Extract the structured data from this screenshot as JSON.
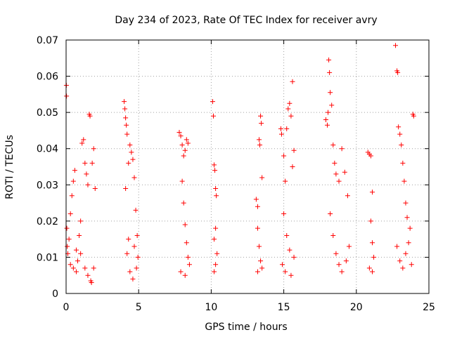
{
  "chart_data": {
    "type": "scatter",
    "title": "Day 234 of 2023, Rate Of TEC Index for receiver avry",
    "xlabel": "GPS time / hours",
    "ylabel": "ROTI / TECUs",
    "xlim": [
      0,
      25
    ],
    "ylim": [
      0,
      0.07
    ],
    "xticks": [
      "0",
      "5",
      "10",
      "15",
      "20",
      "25"
    ],
    "yticks": [
      "0",
      "0.01",
      "0.02",
      "0.03",
      "0.04",
      "0.05",
      "0.06",
      "0.07"
    ],
    "grid": true,
    "marker": "plus",
    "color": "#ff0000",
    "series": [
      {
        "points": [
          [
            0.02,
            0.0575
          ],
          [
            0.03,
            0.0545
          ],
          [
            0.05,
            0.018
          ],
          [
            0.08,
            0.013
          ],
          [
            0.12,
            0.011
          ],
          [
            0.2,
            0.015
          ],
          [
            0.3,
            0.022
          ],
          [
            0.4,
            0.027
          ],
          [
            0.5,
            0.031
          ],
          [
            0.6,
            0.034
          ],
          [
            0.7,
            0.012
          ],
          [
            0.8,
            0.009
          ],
          [
            0.9,
            0.016
          ],
          [
            1.0,
            0.02
          ],
          [
            1.1,
            0.0415
          ],
          [
            1.2,
            0.0425
          ],
          [
            1.3,
            0.036
          ],
          [
            1.4,
            0.033
          ],
          [
            1.5,
            0.03
          ],
          [
            1.6,
            0.0495
          ],
          [
            1.65,
            0.049
          ],
          [
            1.7,
            0.0035
          ],
          [
            1.75,
            0.003
          ],
          [
            1.8,
            0.036
          ],
          [
            1.9,
            0.04
          ],
          [
            2.0,
            0.029
          ],
          [
            0.3,
            0.008
          ],
          [
            0.5,
            0.007
          ],
          [
            0.7,
            0.006
          ],
          [
            1.0,
            0.011
          ],
          [
            1.3,
            0.007
          ],
          [
            1.5,
            0.005
          ],
          [
            1.9,
            0.007
          ],
          [
            4.0,
            0.053
          ],
          [
            4.05,
            0.051
          ],
          [
            4.1,
            0.0485
          ],
          [
            4.15,
            0.0465
          ],
          [
            4.2,
            0.044
          ],
          [
            4.3,
            0.036
          ],
          [
            4.1,
            0.029
          ],
          [
            4.4,
            0.041
          ],
          [
            4.5,
            0.039
          ],
          [
            4.6,
            0.037
          ],
          [
            4.7,
            0.032
          ],
          [
            4.8,
            0.023
          ],
          [
            4.9,
            0.016
          ],
          [
            4.95,
            0.01
          ],
          [
            4.4,
            0.006
          ],
          [
            4.6,
            0.004
          ],
          [
            4.2,
            0.011
          ],
          [
            4.3,
            0.015
          ],
          [
            4.7,
            0.013
          ],
          [
            4.85,
            0.007
          ],
          [
            7.8,
            0.0445
          ],
          [
            7.9,
            0.0435
          ],
          [
            8.0,
            0.041
          ],
          [
            8.1,
            0.038
          ],
          [
            8.2,
            0.0395
          ],
          [
            8.3,
            0.0425
          ],
          [
            8.4,
            0.0415
          ],
          [
            8.0,
            0.031
          ],
          [
            8.1,
            0.025
          ],
          [
            8.2,
            0.019
          ],
          [
            8.3,
            0.014
          ],
          [
            8.4,
            0.01
          ],
          [
            8.5,
            0.008
          ],
          [
            7.9,
            0.006
          ],
          [
            8.2,
            0.005
          ],
          [
            10.1,
            0.053
          ],
          [
            10.15,
            0.049
          ],
          [
            10.2,
            0.0355
          ],
          [
            10.25,
            0.034
          ],
          [
            10.3,
            0.029
          ],
          [
            10.35,
            0.027
          ],
          [
            10.3,
            0.018
          ],
          [
            10.2,
            0.015
          ],
          [
            10.4,
            0.011
          ],
          [
            10.3,
            0.008
          ],
          [
            10.2,
            0.006
          ],
          [
            13.1,
            0.026
          ],
          [
            13.2,
            0.024
          ],
          [
            13.3,
            0.0425
          ],
          [
            13.35,
            0.041
          ],
          [
            13.4,
            0.049
          ],
          [
            13.45,
            0.047
          ],
          [
            13.5,
            0.032
          ],
          [
            13.2,
            0.018
          ],
          [
            13.3,
            0.013
          ],
          [
            13.4,
            0.009
          ],
          [
            13.2,
            0.006
          ],
          [
            13.5,
            0.007
          ],
          [
            14.8,
            0.0455
          ],
          [
            14.85,
            0.044
          ],
          [
            15.0,
            0.038
          ],
          [
            15.1,
            0.031
          ],
          [
            15.2,
            0.0455
          ],
          [
            15.3,
            0.051
          ],
          [
            15.4,
            0.0525
          ],
          [
            15.5,
            0.049
          ],
          [
            15.6,
            0.0585
          ],
          [
            15.7,
            0.0395
          ],
          [
            15.6,
            0.035
          ],
          [
            15.0,
            0.022
          ],
          [
            15.2,
            0.016
          ],
          [
            15.4,
            0.012
          ],
          [
            14.9,
            0.008
          ],
          [
            15.1,
            0.006
          ],
          [
            15.5,
            0.005
          ],
          [
            15.7,
            0.01
          ],
          [
            17.9,
            0.048
          ],
          [
            18.0,
            0.0465
          ],
          [
            18.05,
            0.05
          ],
          [
            18.1,
            0.0645
          ],
          [
            18.15,
            0.061
          ],
          [
            18.2,
            0.0555
          ],
          [
            18.3,
            0.052
          ],
          [
            18.4,
            0.041
          ],
          [
            18.5,
            0.036
          ],
          [
            18.6,
            0.033
          ],
          [
            18.8,
            0.031
          ],
          [
            19.0,
            0.04
          ],
          [
            19.2,
            0.0335
          ],
          [
            19.4,
            0.027
          ],
          [
            18.2,
            0.022
          ],
          [
            18.4,
            0.016
          ],
          [
            18.6,
            0.011
          ],
          [
            18.8,
            0.008
          ],
          [
            19.0,
            0.006
          ],
          [
            19.3,
            0.009
          ],
          [
            19.5,
            0.013
          ],
          [
            20.8,
            0.039
          ],
          [
            20.9,
            0.0385
          ],
          [
            21.0,
            0.038
          ],
          [
            21.1,
            0.028
          ],
          [
            21.0,
            0.02
          ],
          [
            21.1,
            0.014
          ],
          [
            21.2,
            0.01
          ],
          [
            20.9,
            0.007
          ],
          [
            21.1,
            0.006
          ],
          [
            22.7,
            0.0685
          ],
          [
            22.8,
            0.0615
          ],
          [
            22.85,
            0.061
          ],
          [
            22.9,
            0.046
          ],
          [
            23.0,
            0.044
          ],
          [
            23.1,
            0.041
          ],
          [
            23.2,
            0.036
          ],
          [
            23.3,
            0.031
          ],
          [
            23.4,
            0.025
          ],
          [
            23.5,
            0.021
          ],
          [
            23.7,
            0.018
          ],
          [
            23.9,
            0.0495
          ],
          [
            23.95,
            0.049
          ],
          [
            22.8,
            0.013
          ],
          [
            23.0,
            0.009
          ],
          [
            23.2,
            0.007
          ],
          [
            23.4,
            0.011
          ],
          [
            23.6,
            0.014
          ],
          [
            23.8,
            0.008
          ]
        ]
      }
    ]
  }
}
